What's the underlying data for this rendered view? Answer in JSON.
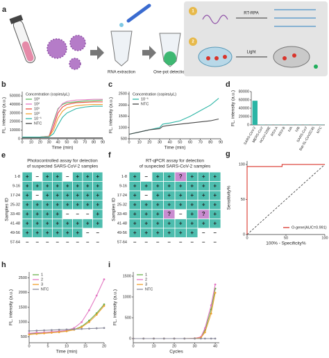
{
  "schematic": {
    "panel": "a",
    "steps": [
      "RNA extraction",
      "One-pot detection"
    ],
    "step1_number": "1",
    "step1_label": "RT-RPA",
    "step2_number": "2",
    "step2_label": "Light"
  },
  "chart_data": [
    {
      "panel": "b",
      "type": "line",
      "xlabel": "Time (min)",
      "ylabel": "FL. intensity (a.u.)",
      "legend_title": "Concentration (copies/μL)",
      "legend": "upper left",
      "x": [
        0,
        10,
        20,
        30,
        35,
        40,
        45,
        50,
        60,
        70,
        80,
        90
      ],
      "series": [
        {
          "name": "10³",
          "color": "#5cb85c",
          "values": [
            2000,
            2000,
            2000,
            3000,
            20000,
            35000,
            40000,
            42000,
            43000,
            44000,
            44500,
            45000
          ]
        },
        {
          "name": "10²",
          "color": "#e377c2",
          "values": [
            2000,
            2000,
            2000,
            3000,
            18000,
            34000,
            41000,
            43500,
            45000,
            45500,
            46000,
            46000
          ]
        },
        {
          "name": "10¹",
          "color": "#e74c3c",
          "values": [
            2000,
            2000,
            2000,
            2500,
            14000,
            30000,
            37000,
            40000,
            42000,
            42500,
            43000,
            43000
          ]
        },
        {
          "name": "10⁰",
          "color": "#f0a030",
          "values": [
            2000,
            2000,
            2000,
            2500,
            10000,
            24000,
            32000,
            36000,
            38500,
            39500,
            40000,
            40000
          ]
        },
        {
          "name": "10⁻¹",
          "color": "#2bb5a5",
          "values": [
            2000,
            2000,
            2000,
            2200,
            6000,
            16000,
            25000,
            30000,
            35000,
            37000,
            38000,
            38000
          ]
        },
        {
          "name": "NTC",
          "color": "#444444",
          "values": [
            1000,
            1000,
            1000,
            1000,
            1000,
            1000,
            1000,
            1000,
            1000,
            1000,
            1000,
            1000
          ]
        }
      ],
      "xlim": [
        0,
        90
      ],
      "xticks": [
        0,
        10,
        20,
        30,
        40,
        50,
        60,
        70,
        80,
        90
      ],
      "ylim": [
        0,
        55000
      ],
      "yticks": [
        0,
        10000,
        20000,
        30000,
        40000,
        50000
      ]
    },
    {
      "panel": "c",
      "type": "line",
      "xlabel": "Time (min)",
      "ylabel": "FL. intensity (a.u.)",
      "legend_title": "Concentration (copies/μL)",
      "legend": "upper left",
      "x": [
        0,
        10,
        20,
        30,
        33,
        40,
        50,
        60,
        70,
        80,
        88
      ],
      "series": [
        {
          "name": "10⁻¹",
          "color": "#2bb5a5",
          "values": [
            700,
            800,
            900,
            1000,
            1150,
            1200,
            1300,
            1500,
            1750,
            2000,
            2300
          ]
        },
        {
          "name": "NTC",
          "color": "#444444",
          "values": [
            700,
            800,
            900,
            950,
            1050,
            1100,
            1150,
            1200,
            1250,
            1300,
            1380
          ]
        }
      ],
      "xlim": [
        0,
        90
      ],
      "xticks": [
        0,
        10,
        20,
        30,
        40,
        50,
        60,
        70,
        80,
        90
      ],
      "ylim": [
        500,
        2600
      ],
      "yticks": [
        500,
        1000,
        1500,
        2000,
        2500
      ]
    },
    {
      "panel": "d",
      "type": "bar",
      "ylabel": "FL. intensity (a.u.)",
      "color": "#2bb5a5",
      "categories": [
        "SARS-CoV-2",
        "MERS-CoV",
        "HCoV-229E",
        "RSV-A",
        "RSV-B",
        "IVA",
        "IVB",
        "SARS-CoV",
        "Bat-SL-CoVZC45",
        "NTC"
      ],
      "values": [
        58000,
        600,
        500,
        500,
        500,
        500,
        500,
        500,
        500,
        500
      ],
      "ylim": [
        0,
        80000
      ],
      "yticks": [
        0,
        20000,
        40000,
        60000,
        80000
      ]
    },
    {
      "panel": "e",
      "type": "heatmap",
      "title": [
        "Photocontrolled assay for detection",
        "of suspected SARS-CoV-2 samples"
      ],
      "ylabel": "Samples ID",
      "categories": [
        "1-8",
        "9-16",
        "17-24",
        "25-32",
        "33-40",
        "41-48",
        "49-56",
        "57-64"
      ],
      "colors": {
        "+": "#4dbdae",
        "–": "#ffffff",
        "?": "#c98bd0"
      },
      "cells": [
        [
          "+",
          "–",
          "+",
          "+",
          "–",
          "+",
          "+",
          "+"
        ],
        [
          "+",
          "+",
          "+",
          "+",
          "+",
          "+",
          "+",
          "+"
        ],
        [
          "+",
          "–",
          "+",
          "+",
          "+",
          "+",
          "+",
          "+"
        ],
        [
          "+",
          "+",
          "+",
          "+",
          "+",
          "+",
          "+",
          "+"
        ],
        [
          "+",
          "+",
          "+",
          "+",
          "–",
          "–",
          "–",
          "+"
        ],
        [
          "+",
          "+",
          "+",
          "+",
          "+",
          "+",
          "+",
          "+"
        ],
        [
          "+",
          "+",
          "+",
          "+",
          "+",
          "+",
          "–",
          "–"
        ],
        [
          "–",
          "–",
          "–",
          "–",
          "–",
          "–",
          "–",
          "–"
        ]
      ]
    },
    {
      "panel": "f",
      "type": "heatmap",
      "title": [
        "RT-qPCR assay for detection",
        "of suspected SARS-CoV-2 samples"
      ],
      "ylabel": "Samples ID",
      "categories": [
        "1-8",
        "9-16",
        "17-24",
        "25-32",
        "33-40",
        "41-48",
        "49-56",
        "57-64"
      ],
      "colors": {
        "+": "#4dbdae",
        "–": "#ffffff",
        "?": "#c98bd0"
      },
      "cells": [
        [
          "+",
          "–",
          "+",
          "+",
          "?",
          "+",
          "+",
          "+"
        ],
        [
          "+",
          "+",
          "+",
          "+",
          "+",
          "+",
          "+",
          "+"
        ],
        [
          "+",
          "–",
          "+",
          "+",
          "+",
          "+",
          "+",
          "+"
        ],
        [
          "+",
          "+",
          "+",
          "+",
          "+",
          "+",
          "+",
          "+"
        ],
        [
          "+",
          "+",
          "+",
          "?",
          "–",
          "+",
          "?",
          "+"
        ],
        [
          "+",
          "+",
          "+",
          "+",
          "+",
          "+",
          "+",
          "+"
        ],
        [
          "+",
          "+",
          "+",
          "+",
          "+",
          "+",
          "–",
          "–"
        ],
        [
          "–",
          "–",
          "–",
          "–",
          "–",
          "–",
          "–",
          "–"
        ]
      ]
    },
    {
      "panel": "g",
      "type": "line",
      "xlabel": "100% - Specificity%",
      "ylabel": "Sensitivity%",
      "legend": "lower right",
      "diagonal": true,
      "x": [
        0,
        0,
        45,
        45,
        100
      ],
      "series": [
        {
          "name": "O-gene(AUC=0.991)",
          "color": "#d9342b",
          "values": [
            0,
            97,
            97,
            100,
            100
          ]
        }
      ],
      "xlim": [
        0,
        100
      ],
      "xticks": [
        0,
        50,
        100
      ],
      "ylim": [
        0,
        105
      ],
      "yticks": [
        0,
        50,
        100
      ]
    },
    {
      "panel": "h",
      "type": "line",
      "xlabel": "Time (min)",
      "ylabel": "FL. intensity (a.u.)",
      "legend": "upper left",
      "markers": true,
      "x": [
        0,
        2,
        4,
        6,
        8,
        10,
        12,
        14,
        16,
        18,
        20
      ],
      "series": [
        {
          "name": "1",
          "color": "#6ab04c",
          "values": [
            600,
            620,
            640,
            660,
            680,
            700,
            750,
            850,
            1050,
            1300,
            1600
          ]
        },
        {
          "name": "2",
          "color": "#e377c2",
          "values": [
            620,
            640,
            650,
            670,
            690,
            720,
            800,
            1000,
            1400,
            1900,
            2450
          ]
        },
        {
          "name": "3",
          "color": "#f0a030",
          "values": [
            580,
            600,
            620,
            640,
            660,
            690,
            740,
            830,
            1000,
            1250,
            1550
          ]
        },
        {
          "name": "NTC",
          "color": "#8c8c9c",
          "values": [
            700,
            710,
            720,
            730,
            740,
            750,
            760,
            770,
            780,
            790,
            800
          ]
        }
      ],
      "xlim": [
        0,
        20
      ],
      "xticks": [
        0,
        5,
        10,
        15,
        20
      ],
      "ylim": [
        300,
        2700
      ],
      "yticks": [
        500,
        1000,
        1500,
        2000,
        2500
      ]
    },
    {
      "panel": "i",
      "type": "line",
      "xlabel": "Cycles",
      "ylabel": "FL. intensity (a.u.)",
      "legend": "upper left",
      "markers": true,
      "x": [
        0,
        5,
        10,
        15,
        20,
        25,
        30,
        33,
        35,
        38,
        40
      ],
      "series": [
        {
          "name": "1",
          "color": "#6ab04c",
          "values": [
            0,
            0,
            0,
            0,
            0,
            0,
            5,
            30,
            200,
            700,
            1200
          ]
        },
        {
          "name": "2",
          "color": "#e377c2",
          "values": [
            0,
            0,
            0,
            0,
            0,
            0,
            5,
            40,
            250,
            800,
            1300
          ]
        },
        {
          "name": "3",
          "color": "#f0a030",
          "values": [
            0,
            0,
            0,
            0,
            0,
            0,
            3,
            20,
            150,
            600,
            1100
          ]
        },
        {
          "name": "NTC",
          "color": "#8c8c9c",
          "values": [
            0,
            0,
            0,
            0,
            0,
            0,
            0,
            0,
            0,
            0,
            0
          ]
        }
      ],
      "xlim": [
        0,
        42
      ],
      "xticks": [
        0,
        10,
        20,
        30,
        40
      ],
      "ylim": [
        -100,
        1600
      ],
      "yticks": [
        0,
        500,
        1000,
        1500
      ]
    }
  ]
}
